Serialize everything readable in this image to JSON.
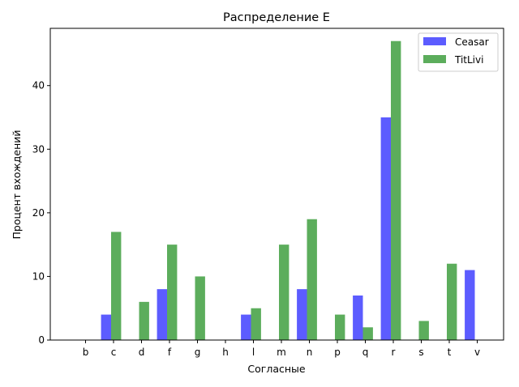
{
  "chart_data": {
    "type": "bar",
    "title": "Распределение Е",
    "xlabel": "Согласные",
    "ylabel": "Процент вхождений",
    "categories": [
      "b",
      "c",
      "d",
      "f",
      "g",
      "h",
      "l",
      "m",
      "n",
      "p",
      "q",
      "r",
      "s",
      "t",
      "v"
    ],
    "series": [
      {
        "name": "Ceasar",
        "color": "#3333ff",
        "values": [
          0,
          4,
          0,
          8,
          0,
          0,
          4,
          0,
          8,
          0,
          7,
          35,
          0,
          0,
          11
        ]
      },
      {
        "name": "TitLivi",
        "color": "#339933",
        "values": [
          0,
          17,
          6,
          15,
          10,
          0,
          5,
          15,
          19,
          4,
          2,
          47,
          3,
          12,
          0
        ]
      }
    ],
    "ylim": [
      0,
      49
    ],
    "yticks": [
      0,
      10,
      20,
      30,
      40
    ],
    "grid": false,
    "legend_position": "top-right"
  }
}
